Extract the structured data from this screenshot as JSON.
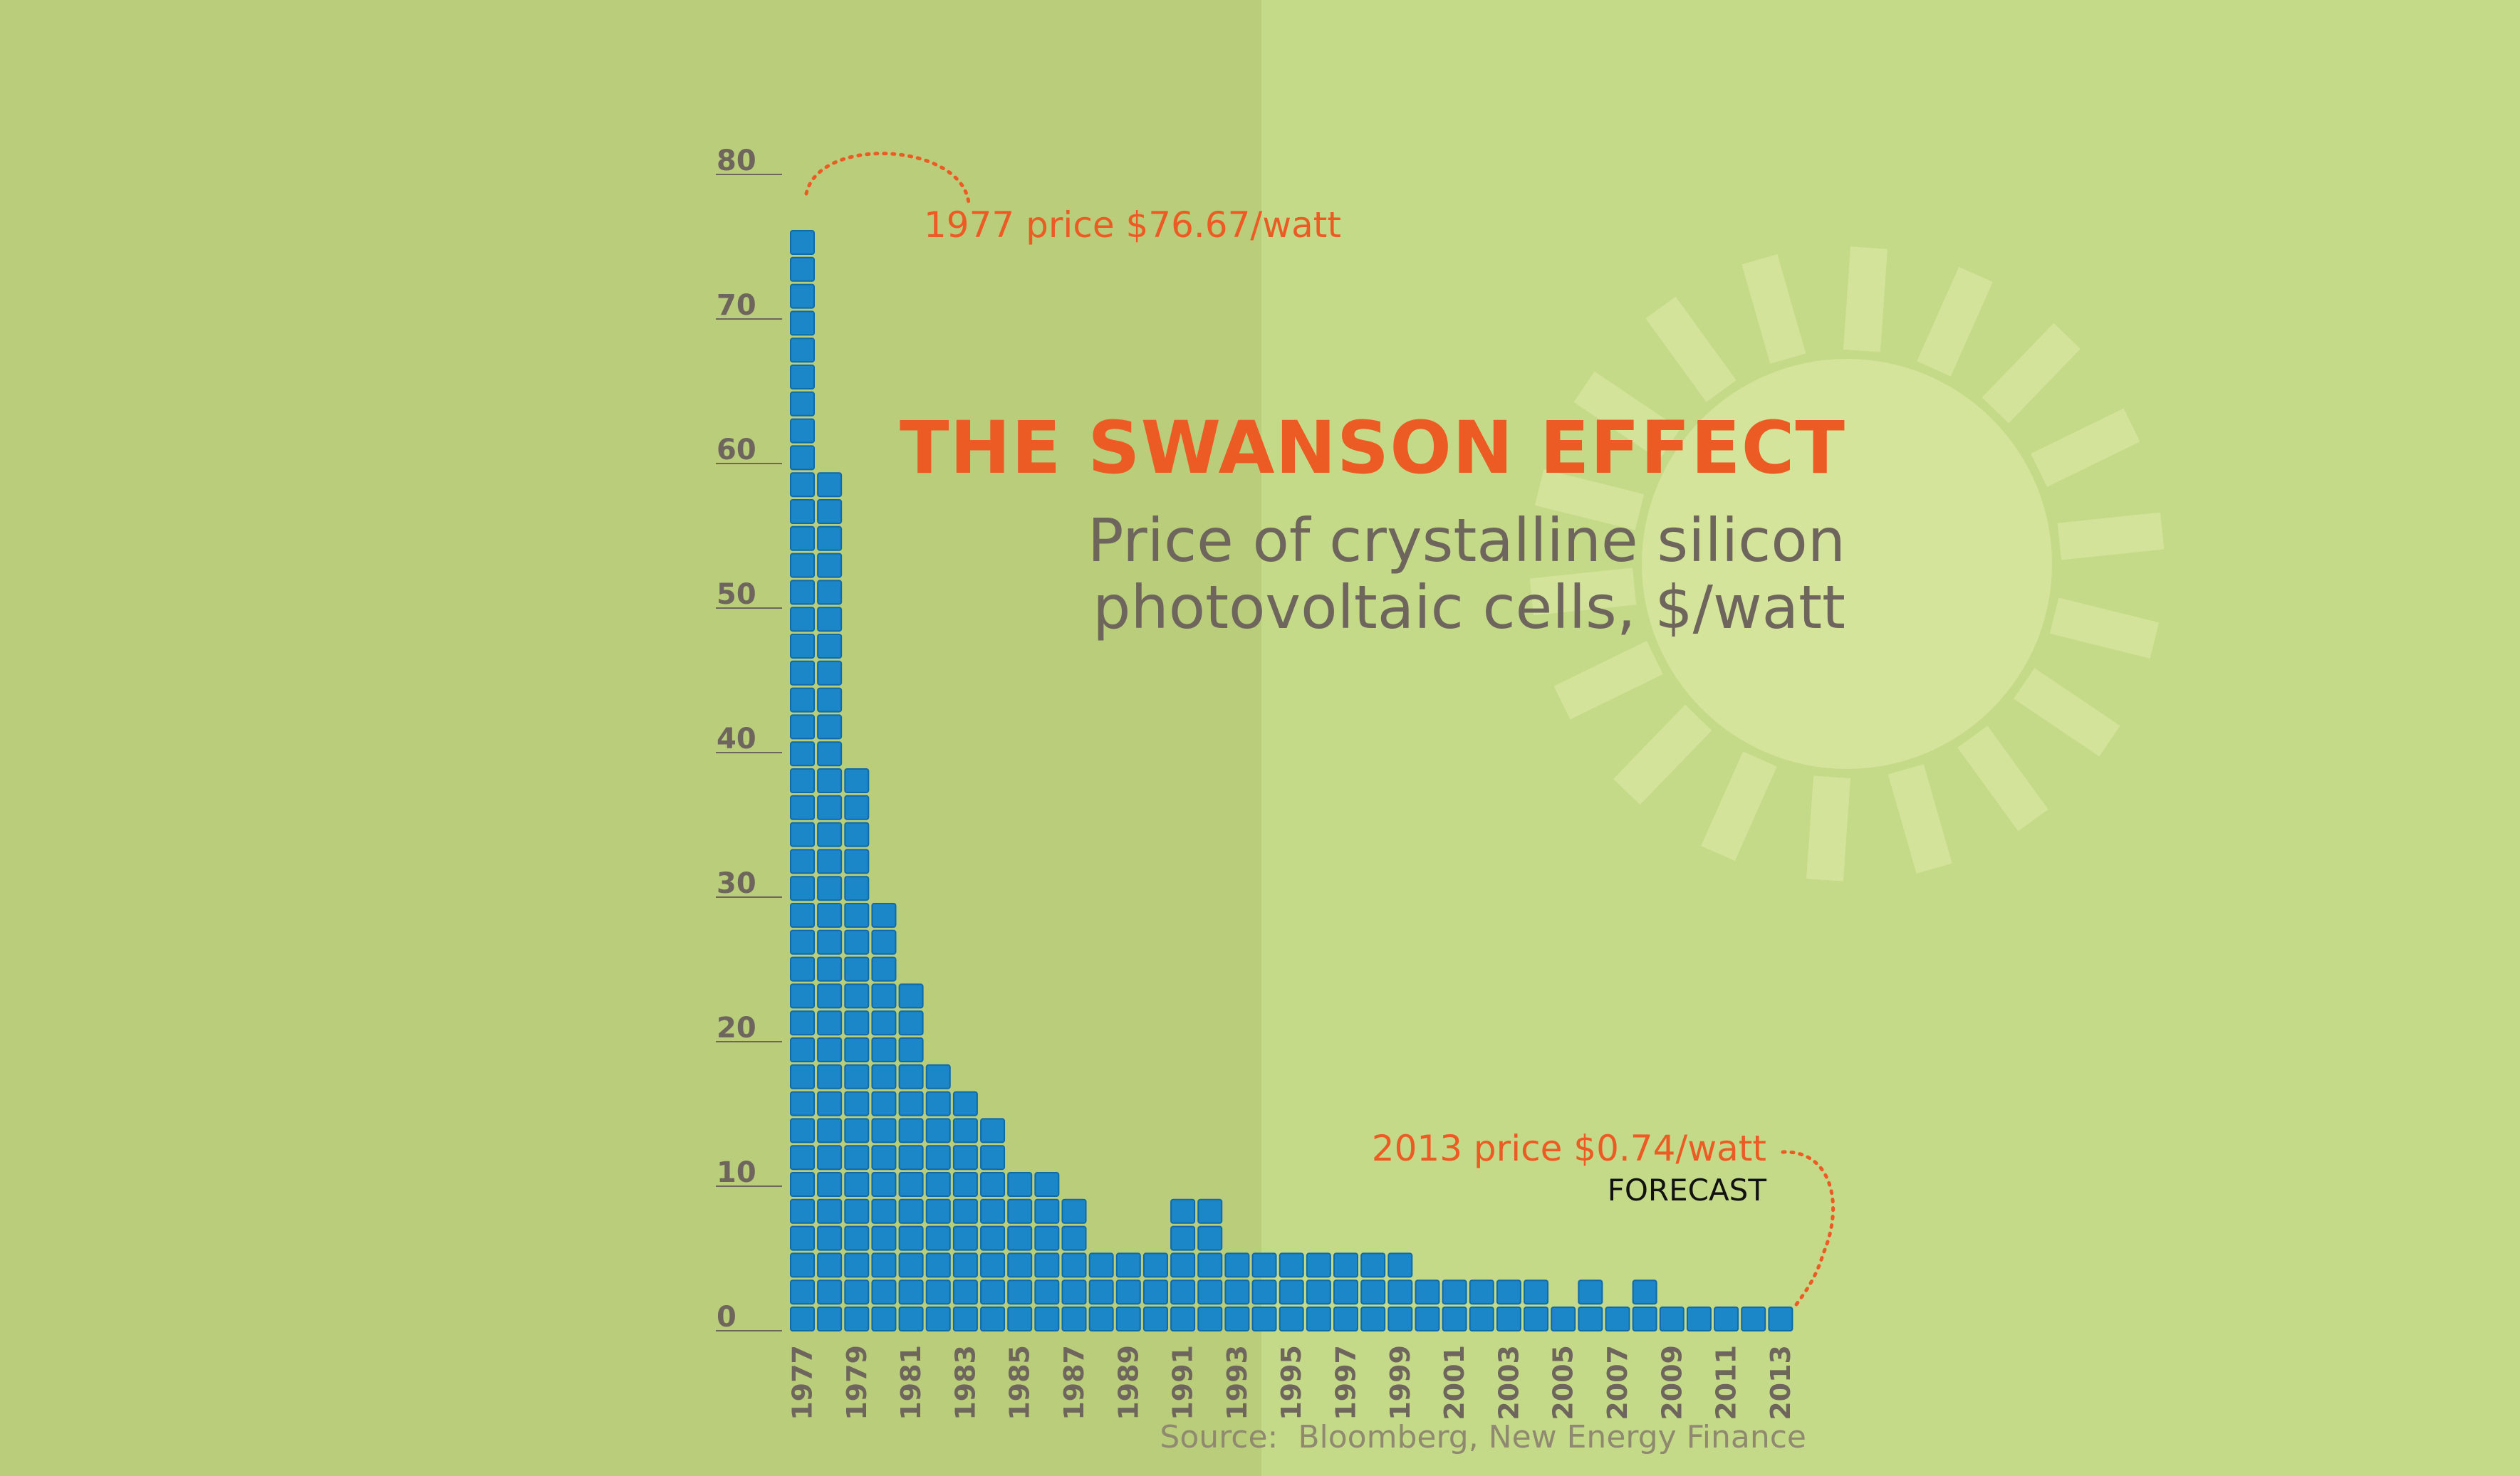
{
  "title": "THE SWANSON EFFECT",
  "subtitle_lines": [
    "Price of crystalline silicon",
    "photovoltaic cells, $/watt"
  ],
  "source": "Source:  Bloomberg, New Energy Finance",
  "colors": {
    "bg_left": "#b9cd7b",
    "bg_right": "#c5da88",
    "cell_fill": "#1b86c8",
    "cell_stroke": "#0f6aa6",
    "accent": "#ec5b24",
    "axis_text": "#6e655d",
    "sun": "#d6e59e"
  },
  "chart_data": {
    "type": "bar",
    "title": "THE SWANSON EFFECT",
    "subtitle": "Price of crystalline silicon photovoltaic cells, $/watt",
    "ylim": [
      0,
      80
    ],
    "yticks": [
      0,
      10,
      20,
      30,
      40,
      50,
      60,
      70,
      80
    ],
    "x_tick_labels": [
      "1977",
      "1979",
      "1981",
      "1983",
      "1985",
      "1987",
      "1989",
      "1991",
      "1993",
      "1995",
      "1997",
      "1999",
      "2001",
      "2003",
      "2005",
      "2007",
      "2009",
      "2011",
      "2013"
    ],
    "categories": [
      "1977",
      "1978",
      "1979",
      "1980",
      "1981",
      "1982",
      "1983",
      "1984",
      "1985",
      "1986",
      "1987",
      "1988",
      "1989",
      "1990",
      "1991",
      "1992",
      "1993",
      "1994",
      "1995",
      "1996",
      "1997",
      "1998",
      "1999",
      "2000",
      "2001",
      "2002",
      "2003",
      "2004",
      "2005",
      "2006",
      "2007",
      "2008",
      "2009",
      "2010",
      "2011",
      "2012",
      "2013"
    ],
    "values": [
      76.67,
      59,
      40,
      29,
      25,
      19.5,
      17.5,
      14,
      12,
      12,
      10,
      6.5,
      6.5,
      6.5,
      8.5,
      8.5,
      6.5,
      6.5,
      6.5,
      6.5,
      6.5,
      6.5,
      6.5,
      4.5,
      4.5,
      4.5,
      4.5,
      4.5,
      2.5,
      4.5,
      2.5,
      4.5,
      2.5,
      0.74,
      0.74,
      0.74,
      0.74
    ],
    "grid": false,
    "legend": "none",
    "annotations": {
      "start": "1977 price $76.67/watt",
      "end": "2013 price $0.74/watt",
      "forecast": "FORECAST"
    }
  }
}
